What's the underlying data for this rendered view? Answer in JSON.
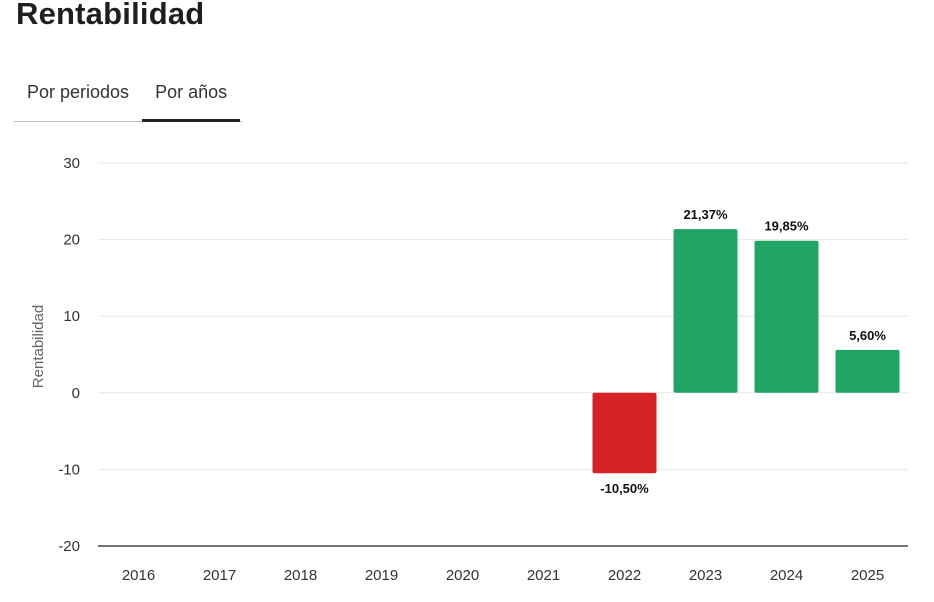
{
  "page": {
    "title": "Rentabilidad"
  },
  "tabs": [
    {
      "label": "Por periodos",
      "active": false
    },
    {
      "label": "Por años",
      "active": true
    }
  ],
  "colors": {
    "positive": "#1fa463",
    "negative": "#d62226",
    "grid": "#e6e6e6",
    "axis": "#222222"
  },
  "chart_data": {
    "type": "bar",
    "ylabel": "Rentabilidad",
    "xlabel": "",
    "ylim": [
      -20,
      30
    ],
    "yticks": [
      30,
      20,
      10,
      0,
      -10,
      -20
    ],
    "grid": true,
    "categories": [
      "2016",
      "2017",
      "2018",
      "2019",
      "2020",
      "2021",
      "2022",
      "2023",
      "2024",
      "2025"
    ],
    "values": [
      null,
      null,
      null,
      null,
      null,
      null,
      -10.5,
      21.37,
      19.85,
      5.6
    ],
    "labels": [
      "",
      "",
      "",
      "",
      "",
      "",
      "-10,50%",
      "21,37%",
      "19,85%",
      "5,60%"
    ]
  }
}
